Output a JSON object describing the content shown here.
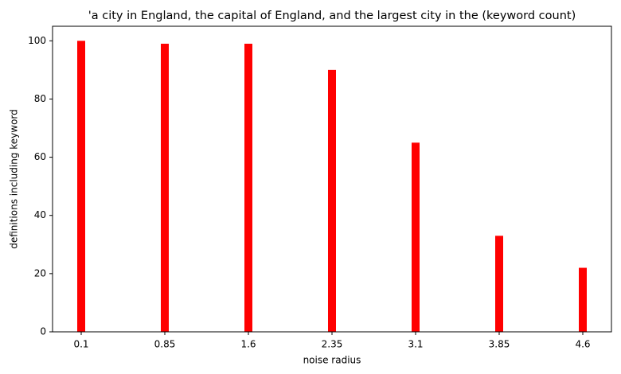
{
  "chart_data": {
    "type": "bar",
    "title": "'a city in England, the capital of England, and the largest city in the (keyword count)",
    "x_label": "noise radius",
    "y_label": "definitions including keyword",
    "categories": [
      "0.1",
      "0.85",
      "1.6",
      "2.35",
      "3.1",
      "3.85",
      "4.6"
    ],
    "values": [
      100,
      99,
      99,
      90,
      65,
      33,
      22
    ],
    "color": "#ff0000",
    "ylim": [
      0,
      105
    ],
    "yticks": [
      0,
      20,
      40,
      60,
      80,
      100
    ],
    "grid": false
  }
}
